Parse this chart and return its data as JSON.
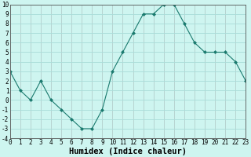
{
  "x": [
    0,
    1,
    2,
    3,
    4,
    5,
    6,
    7,
    8,
    9,
    10,
    11,
    12,
    13,
    14,
    15,
    16,
    17,
    18,
    19,
    20,
    21,
    22,
    23
  ],
  "y": [
    3,
    1,
    0,
    2,
    0,
    -1,
    -2,
    -3,
    -3,
    -1,
    3,
    5,
    7,
    9,
    9,
    10,
    10,
    8,
    6,
    5,
    5,
    5,
    4,
    2
  ],
  "xlabel": "Humidex (Indice chaleur)",
  "line_color": "#1a7a6e",
  "marker": "D",
  "marker_size": 2.0,
  "bg_color": "#cef5f0",
  "grid_color": "#aaddda",
  "grid_color2": "#d9b0b0",
  "ylim": [
    -4,
    10
  ],
  "xlim": [
    0,
    23
  ],
  "yticks": [
    -4,
    -3,
    -2,
    -1,
    0,
    1,
    2,
    3,
    4,
    5,
    6,
    7,
    8,
    9,
    10
  ],
  "xticks": [
    0,
    1,
    2,
    3,
    4,
    5,
    6,
    7,
    8,
    9,
    10,
    11,
    12,
    13,
    14,
    15,
    16,
    17,
    18,
    19,
    20,
    21,
    22,
    23
  ],
  "tick_fontsize": 5.5,
  "xlabel_fontsize": 7.5
}
